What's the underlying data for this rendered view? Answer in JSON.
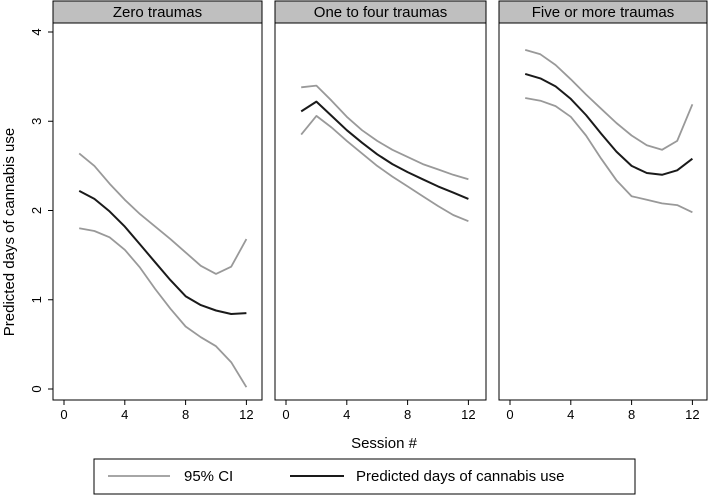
{
  "chart_data": {
    "type": "line",
    "ylabel": "Predicted days of cannabis use",
    "xlabel": "Session #",
    "xlim": [
      0,
      12.5
    ],
    "ylim": [
      0,
      4.2
    ],
    "xticks": [
      0,
      4,
      8,
      12
    ],
    "yticks": [
      0,
      1,
      2,
      3,
      4
    ],
    "grid": false,
    "legend_position": "bottom",
    "legend": [
      {
        "label": "95% CI",
        "color": "#999999"
      },
      {
        "label": "Predicted days of cannabis use",
        "color": "#1a1a1a"
      }
    ],
    "panels": [
      {
        "title": "Zero traumas",
        "x": [
          1,
          2,
          3,
          4,
          5,
          6,
          7,
          8,
          9,
          10,
          11,
          12
        ],
        "series": [
          {
            "name": "95% CI",
            "role": "upper",
            "values": [
              2.64,
              2.5,
              2.3,
              2.12,
              1.96,
              1.82,
              1.68,
              1.53,
              1.38,
              1.29,
              1.37,
              1.68
            ]
          },
          {
            "name": "Predicted days of cannabis use",
            "role": "estimate",
            "values": [
              2.22,
              2.13,
              1.99,
              1.82,
              1.62,
              1.42,
              1.22,
              1.04,
              0.94,
              0.88,
              0.84,
              0.85
            ]
          },
          {
            "name": "95% CI",
            "role": "lower",
            "values": [
              1.8,
              1.77,
              1.7,
              1.56,
              1.36,
              1.12,
              0.9,
              0.7,
              0.58,
              0.48,
              0.3,
              0.02
            ]
          }
        ]
      },
      {
        "title": "One to four traumas",
        "x": [
          1,
          2,
          3,
          4,
          5,
          6,
          7,
          8,
          9,
          10,
          11,
          12
        ],
        "series": [
          {
            "name": "95% CI",
            "role": "upper",
            "values": [
              3.38,
              3.4,
              3.23,
              3.05,
              2.9,
              2.78,
              2.68,
              2.6,
              2.52,
              2.46,
              2.4,
              2.35
            ]
          },
          {
            "name": "Predicted days of cannabis use",
            "role": "estimate",
            "values": [
              3.11,
              3.22,
              3.06,
              2.9,
              2.76,
              2.63,
              2.52,
              2.43,
              2.35,
              2.27,
              2.2,
              2.13
            ]
          },
          {
            "name": "95% CI",
            "role": "lower",
            "values": [
              2.85,
              3.06,
              2.93,
              2.78,
              2.64,
              2.5,
              2.38,
              2.27,
              2.16,
              2.05,
              1.95,
              1.88
            ]
          }
        ]
      },
      {
        "title": "Five or more traumas",
        "x": [
          1,
          2,
          3,
          4,
          5,
          6,
          7,
          8,
          9,
          10,
          11,
          12
        ],
        "series": [
          {
            "name": "95% CI",
            "role": "upper",
            "values": [
              3.8,
              3.75,
              3.63,
              3.47,
              3.3,
              3.14,
              2.98,
              2.84,
              2.73,
              2.68,
              2.78,
              3.19
            ]
          },
          {
            "name": "Predicted days of cannabis use",
            "role": "estimate",
            "values": [
              3.53,
              3.48,
              3.39,
              3.25,
              3.07,
              2.86,
              2.66,
              2.5,
              2.42,
              2.4,
              2.45,
              2.58
            ]
          },
          {
            "name": "95% CI",
            "role": "lower",
            "values": [
              3.26,
              3.23,
              3.17,
              3.05,
              2.84,
              2.58,
              2.34,
              2.16,
              2.12,
              2.08,
              2.06,
              1.98
            ]
          }
        ]
      }
    ]
  }
}
